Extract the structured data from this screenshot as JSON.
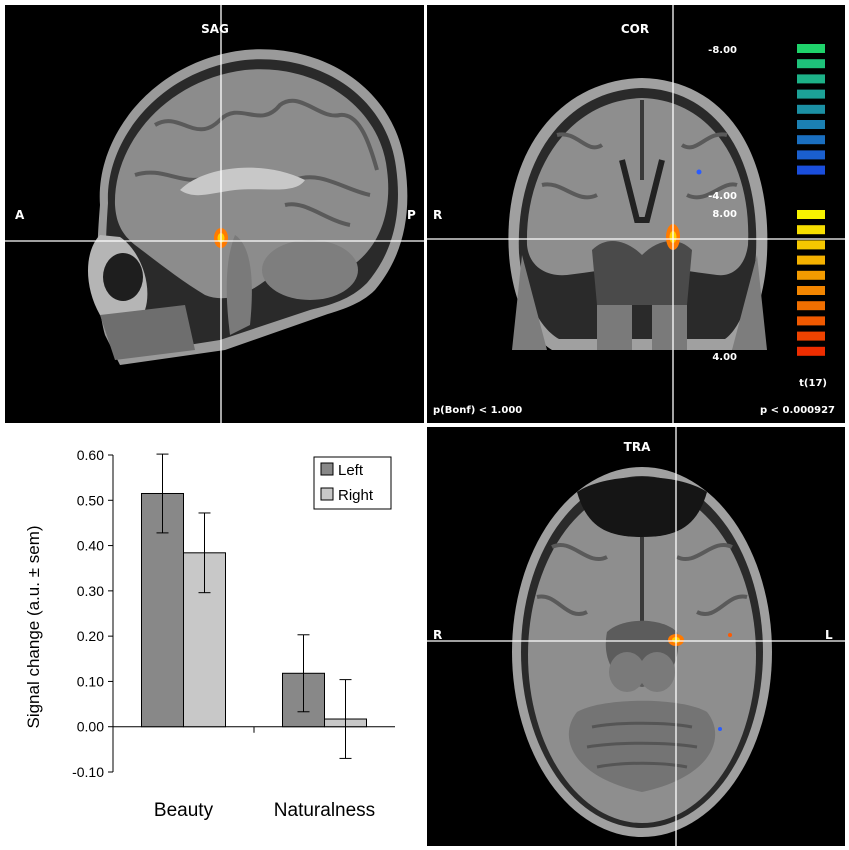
{
  "panels": {
    "sag": {
      "title": "SAG",
      "left_label": "A",
      "right_label": "P"
    },
    "cor": {
      "title": "COR",
      "left_label": "R",
      "footer_left": "p(Bonf) < 1.000",
      "footer_right": "p < 0.000927",
      "colorbar": {
        "label_top": "-8.00",
        "label_neg_end": "-4.00",
        "label_pos_start": "8.00",
        "label_bottom": "4.00",
        "stat": "t(17)",
        "neg_colors": [
          "#1fd36b",
          "#1ec27a",
          "#1db288",
          "#1ca196",
          "#1b90a4",
          "#1b80b2",
          "#1a6fc0",
          "#1a5fce",
          "#1a4edc"
        ],
        "pos_colors": [
          "#f7f300",
          "#f6dd00",
          "#f5c700",
          "#f4b100",
          "#f39b00",
          "#f28500",
          "#f16f00",
          "#f05900",
          "#ef4300",
          "#ee2d00"
        ]
      }
    },
    "tra": {
      "title": "TRA",
      "left_label": "R",
      "right_label": "L"
    }
  },
  "chart_data": {
    "type": "bar",
    "categories": [
      "Beauty",
      "Naturalness"
    ],
    "series": [
      {
        "name": "Left",
        "values": [
          0.515,
          0.118
        ],
        "errors": [
          0.087,
          0.085
        ],
        "color": "#888888"
      },
      {
        "name": "Right",
        "values": [
          0.384,
          0.017
        ],
        "errors": [
          0.088,
          0.087
        ],
        "color": "#c8c8c8"
      }
    ],
    "ylabel": "Signal change (a.u. ± sem)",
    "xlabel": "",
    "ylim": [
      -0.1,
      0.6
    ],
    "yticks": [
      "0.60",
      "0.50",
      "0.40",
      "0.30",
      "0.20",
      "0.10",
      "0.00",
      "-0.10"
    ],
    "legend": "top-right",
    "grid": false
  }
}
